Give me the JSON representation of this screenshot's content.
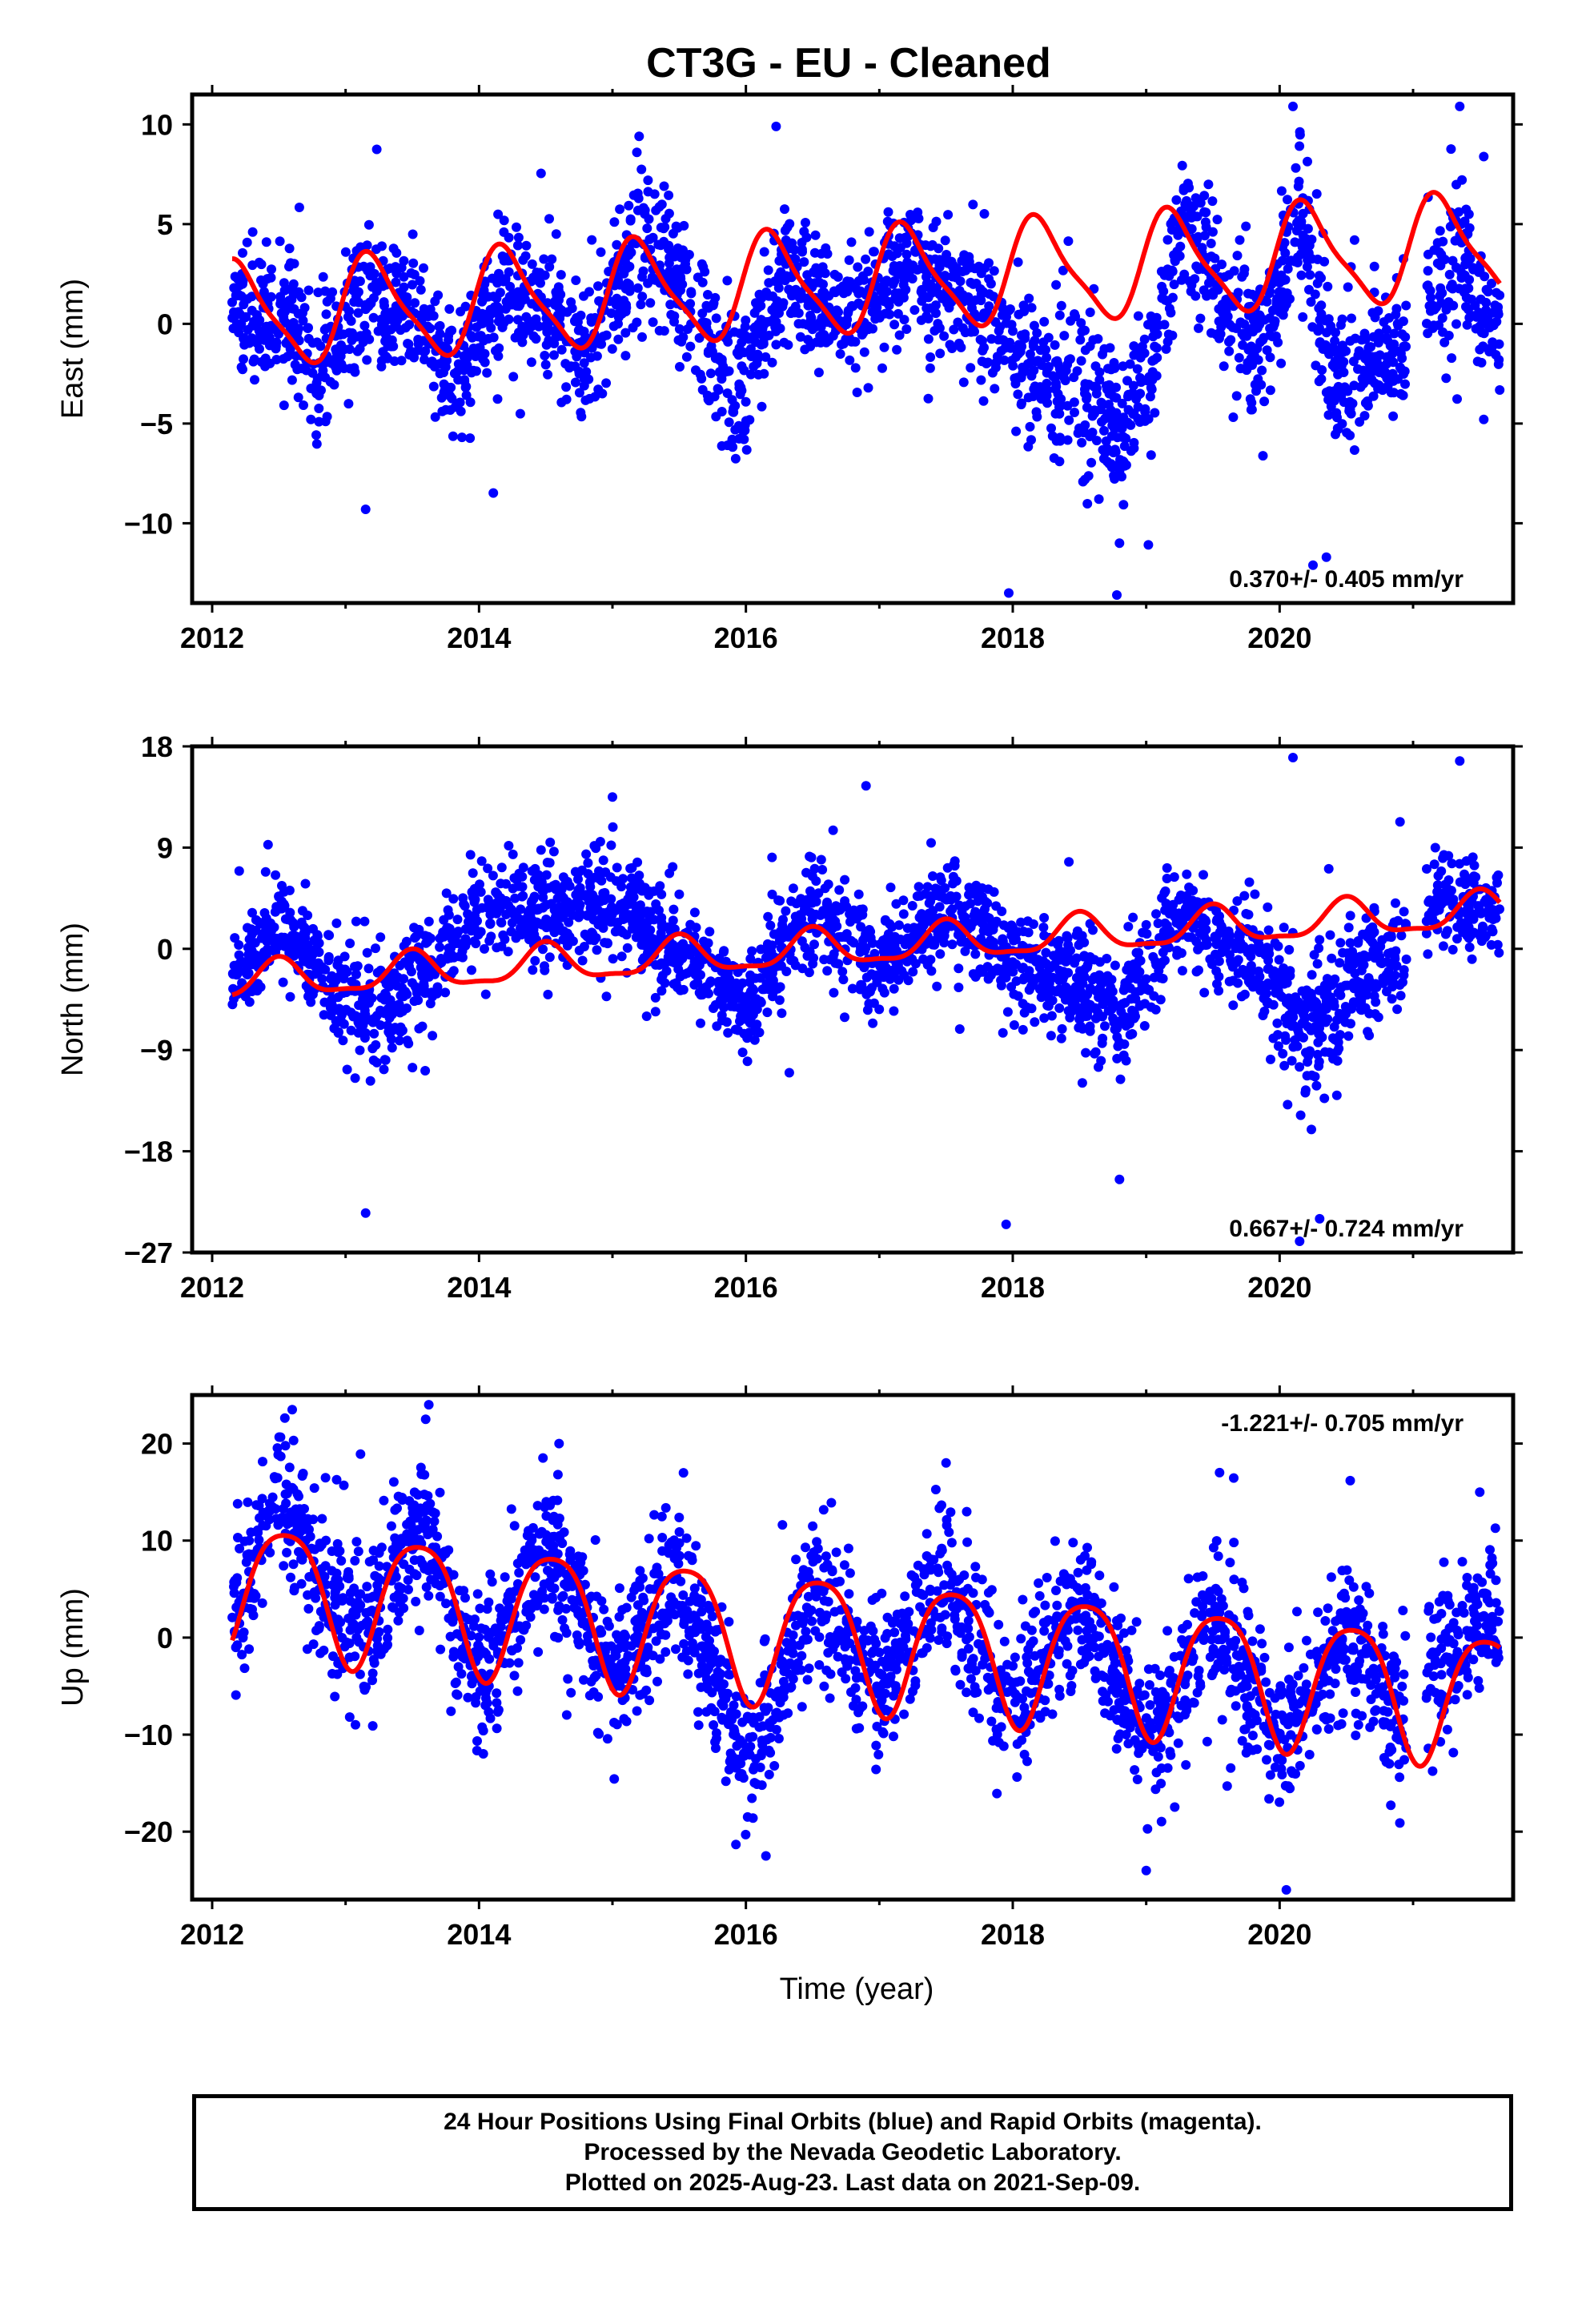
{
  "title": "CT3G  - EU - Cleaned",
  "footer": {
    "line1": "24 Hour Positions Using Final Orbits (blue) and Rapid Orbits (magenta).",
    "line2": "Processed by the Nevada Geodetic Laboratory.",
    "line3": "Plotted on 2025-Aug-23. Last data on 2021-Sep-09."
  },
  "colors": {
    "final_orbits": "#0000ff",
    "model_fit": "#ff0000"
  },
  "chart_data": [
    {
      "type": "scatter",
      "panel": "east",
      "ylabel": "East (mm)",
      "xlabel": "",
      "xlim": [
        2011.85,
        2021.75
      ],
      "ylim": [
        -14,
        11.5
      ],
      "xticks": [
        "2012",
        "2014",
        "2016",
        "2018",
        "2020"
      ],
      "yticks": [
        "10",
        "5",
        "0",
        "−5",
        "−10"
      ],
      "rate_text": "0.370+/- 0.405 mm/yr",
      "rate_position": "bottom-right",
      "model": {
        "trend_mm_per_yr": 0.37,
        "offset": 0.4,
        "annual_amp": 2.5,
        "annual_peak": 0.2,
        "semi_amp": 0.6,
        "semi_phase": 0.1
      },
      "series_shape": [
        {
          "t": 2012.15,
          "mean": 0.8,
          "spread": 1.6
        },
        {
          "t": 2012.5,
          "mean": 0.8,
          "spread": 1.8
        },
        {
          "t": 2012.8,
          "mean": -2.0,
          "spread": 2.0
        },
        {
          "t": 2013.1,
          "mean": 1.2,
          "spread": 1.8
        },
        {
          "t": 2013.5,
          "mean": 0.8,
          "spread": 1.6
        },
        {
          "t": 2013.8,
          "mean": -2.8,
          "spread": 1.6
        },
        {
          "t": 2014.2,
          "mean": 1.8,
          "spread": 1.6
        },
        {
          "t": 2014.5,
          "mean": 1.0,
          "spread": 1.6
        },
        {
          "t": 2014.8,
          "mean": -1.5,
          "spread": 1.8
        },
        {
          "t": 2015.25,
          "mean": 4.5,
          "spread": 2.0
        },
        {
          "t": 2015.5,
          "mean": 2.0,
          "spread": 1.8
        },
        {
          "t": 2015.9,
          "mean": -3.5,
          "spread": 2.0
        },
        {
          "t": 2016.3,
          "mean": 2.5,
          "spread": 1.8
        },
        {
          "t": 2016.8,
          "mean": 0.5,
          "spread": 1.8
        },
        {
          "t": 2017.25,
          "mean": 3.0,
          "spread": 1.8
        },
        {
          "t": 2017.8,
          "mean": 0.5,
          "spread": 1.8
        },
        {
          "t": 2018.0,
          "mean": -1.5,
          "spread": 2.0
        },
        {
          "t": 2018.5,
          "mean": -3.0,
          "spread": 2.2
        },
        {
          "t": 2018.8,
          "mean": -5.5,
          "spread": 2.2
        },
        {
          "t": 2019.05,
          "mean": -2.0,
          "spread": 2.0
        },
        {
          "t": 2019.3,
          "mean": 5.5,
          "spread": 2.0
        },
        {
          "t": 2019.6,
          "mean": 0.0,
          "spread": 1.8
        },
        {
          "t": 2019.9,
          "mean": -1.5,
          "spread": 1.8
        },
        {
          "t": 2020.15,
          "mean": 5.0,
          "spread": 2.2
        },
        {
          "t": 2020.4,
          "mean": -2.5,
          "spread": 2.2
        },
        {
          "t": 2020.9,
          "mean": -1.5,
          "spread": 1.8
        },
        {
          "t": 2021.1,
          "mean": 1.0,
          "spread": 1.6
        },
        {
          "t": 2021.35,
          "mean": 4.0,
          "spread": 2.2
        },
        {
          "t": 2021.65,
          "mean": -1.0,
          "spread": 1.6
        }
      ],
      "gaps": [
        [
          2020.95,
          2021.1
        ]
      ],
      "outliers": [
        {
          "t": 2013.15,
          "y": -9.3
        },
        {
          "t": 2017.97,
          "y": -13.5
        },
        {
          "t": 2018.78,
          "y": -13.6
        },
        {
          "t": 2020.25,
          "y": -12.1
        },
        {
          "t": 2020.35,
          "y": -11.7
        },
        {
          "t": 2020.1,
          "y": 10.9
        },
        {
          "t": 2021.35,
          "y": 10.9
        },
        {
          "t": 2015.2,
          "y": 9.4
        },
        {
          "t": 2018.8,
          "y": -11.0
        }
      ]
    },
    {
      "type": "scatter",
      "panel": "north",
      "ylabel": "North (mm)",
      "xlabel": "",
      "xlim": [
        2011.85,
        2021.75
      ],
      "ylim": [
        -27,
        18
      ],
      "xticks": [
        "2012",
        "2014",
        "2016",
        "2018",
        "2020"
      ],
      "yticks": [
        "18",
        "9",
        "0",
        "−9",
        "−18",
        "−27"
      ],
      "rate_text": "0.667+/- 0.724 mm/yr",
      "rate_position": "bottom-right",
      "model": {
        "trend_mm_per_yr": 0.667,
        "offset": -3.0,
        "annual_amp": 1.6,
        "annual_peak": 0.5,
        "semi_amp": 0.5,
        "semi_phase": 0.0
      },
      "series_shape": [
        {
          "t": 2012.15,
          "mean": -3.5,
          "spread": 2.0
        },
        {
          "t": 2012.5,
          "mean": 2.5,
          "spread": 2.5
        },
        {
          "t": 2012.8,
          "mean": -2.5,
          "spread": 2.5
        },
        {
          "t": 2013.2,
          "mean": -6.5,
          "spread": 3.0
        },
        {
          "t": 2013.6,
          "mean": -2.0,
          "spread": 2.5
        },
        {
          "t": 2014.1,
          "mean": 4.0,
          "spread": 2.5
        },
        {
          "t": 2014.6,
          "mean": 3.0,
          "spread": 2.5
        },
        {
          "t": 2015.1,
          "mean": 3.5,
          "spread": 2.5
        },
        {
          "t": 2015.6,
          "mean": -1.0,
          "spread": 2.5
        },
        {
          "t": 2016.0,
          "mean": -5.0,
          "spread": 2.5
        },
        {
          "t": 2016.5,
          "mean": 4.0,
          "spread": 2.5
        },
        {
          "t": 2017.0,
          "mean": -2.0,
          "spread": 2.5
        },
        {
          "t": 2017.5,
          "mean": 4.0,
          "spread": 2.5
        },
        {
          "t": 2017.9,
          "mean": 0.0,
          "spread": 2.5
        },
        {
          "t": 2018.3,
          "mean": -2.5,
          "spread": 2.5
        },
        {
          "t": 2018.8,
          "mean": -6.0,
          "spread": 2.8
        },
        {
          "t": 2019.3,
          "mean": 3.5,
          "spread": 2.5
        },
        {
          "t": 2019.8,
          "mean": -1.0,
          "spread": 2.5
        },
        {
          "t": 2020.2,
          "mean": -8.0,
          "spread": 3.5
        },
        {
          "t": 2020.5,
          "mean": -3.0,
          "spread": 3.0
        },
        {
          "t": 2020.9,
          "mean": 0.0,
          "spread": 2.5
        },
        {
          "t": 2021.1,
          "mean": 4.0,
          "spread": 2.5
        },
        {
          "t": 2021.65,
          "mean": 3.5,
          "spread": 2.5
        }
      ],
      "gaps": [
        [
          2020.95,
          2021.1
        ]
      ],
      "outliers": [
        {
          "t": 2013.15,
          "y": -23.5
        },
        {
          "t": 2017.95,
          "y": -24.5
        },
        {
          "t": 2018.8,
          "y": -20.5
        },
        {
          "t": 2020.3,
          "y": -24.0
        },
        {
          "t": 2020.1,
          "y": 17.0
        },
        {
          "t": 2021.35,
          "y": 16.7
        },
        {
          "t": 2016.9,
          "y": 14.5
        },
        {
          "t": 2015.0,
          "y": 13.5
        },
        {
          "t": 2020.15,
          "y": -26.0
        }
      ]
    },
    {
      "type": "scatter",
      "panel": "up",
      "ylabel": "Up (mm)",
      "xlabel": "Time (year)",
      "xlim": [
        2011.85,
        2021.75
      ],
      "ylim": [
        -27,
        25
      ],
      "xticks": [
        "2012",
        "2014",
        "2016",
        "2018",
        "2020"
      ],
      "yticks": [
        "20",
        "10",
        "0",
        "−10",
        "−20"
      ],
      "rate_text": "-1.221+/- 0.705 mm/yr",
      "rate_position": "top-right",
      "model": {
        "trend_mm_per_yr": -1.221,
        "offset": 5.5,
        "annual_amp": 6.7,
        "annual_peak": 0.55,
        "semi_amp": 1.2,
        "semi_phase": 0.3
      },
      "series_shape": [
        {
          "t": 2012.15,
          "mean": 2.0,
          "spread": 4.0
        },
        {
          "t": 2012.5,
          "mean": 15.0,
          "spread": 3.5
        },
        {
          "t": 2012.9,
          "mean": 3.0,
          "spread": 4.5
        },
        {
          "t": 2013.2,
          "mean": 1.0,
          "spread": 4.5
        },
        {
          "t": 2013.55,
          "mean": 13.0,
          "spread": 3.5
        },
        {
          "t": 2014.0,
          "mean": -5.0,
          "spread": 4.0
        },
        {
          "t": 2014.5,
          "mean": 10.0,
          "spread": 4.0
        },
        {
          "t": 2015.0,
          "mean": -4.0,
          "spread": 4.0
        },
        {
          "t": 2015.5,
          "mean": 7.0,
          "spread": 4.0
        },
        {
          "t": 2016.0,
          "mean": -14.0,
          "spread": 4.0
        },
        {
          "t": 2016.5,
          "mean": 5.0,
          "spread": 4.0
        },
        {
          "t": 2017.0,
          "mean": -6.0,
          "spread": 4.0
        },
        {
          "t": 2017.5,
          "mean": 6.0,
          "spread": 4.0
        },
        {
          "t": 2018.0,
          "mean": -8.0,
          "spread": 4.0
        },
        {
          "t": 2018.5,
          "mean": 4.0,
          "spread": 4.0
        },
        {
          "t": 2019.0,
          "mean": -12.0,
          "spread": 4.0
        },
        {
          "t": 2019.5,
          "mean": 3.0,
          "spread": 4.5
        },
        {
          "t": 2020.0,
          "mean": -11.0,
          "spread": 4.0
        },
        {
          "t": 2020.5,
          "mean": 2.0,
          "spread": 4.5
        },
        {
          "t": 2020.9,
          "mean": -9.0,
          "spread": 4.0
        },
        {
          "t": 2021.15,
          "mean": -4.0,
          "spread": 4.0
        },
        {
          "t": 2021.65,
          "mean": 4.0,
          "spread": 4.0
        }
      ],
      "gaps": [
        [
          2020.95,
          2021.1
        ]
      ],
      "outliers": [
        {
          "t": 2012.6,
          "y": 23.5
        },
        {
          "t": 2013.6,
          "y": 22.5
        },
        {
          "t": 2019.0,
          "y": -24.0
        },
        {
          "t": 2020.05,
          "y": -26.0
        },
        {
          "t": 2016.15,
          "y": -22.5
        },
        {
          "t": 2014.6,
          "y": 20.0
        },
        {
          "t": 2017.5,
          "y": 18.0
        },
        {
          "t": 2019.55,
          "y": 17.0
        },
        {
          "t": 2021.5,
          "y": 15.0
        }
      ]
    }
  ]
}
